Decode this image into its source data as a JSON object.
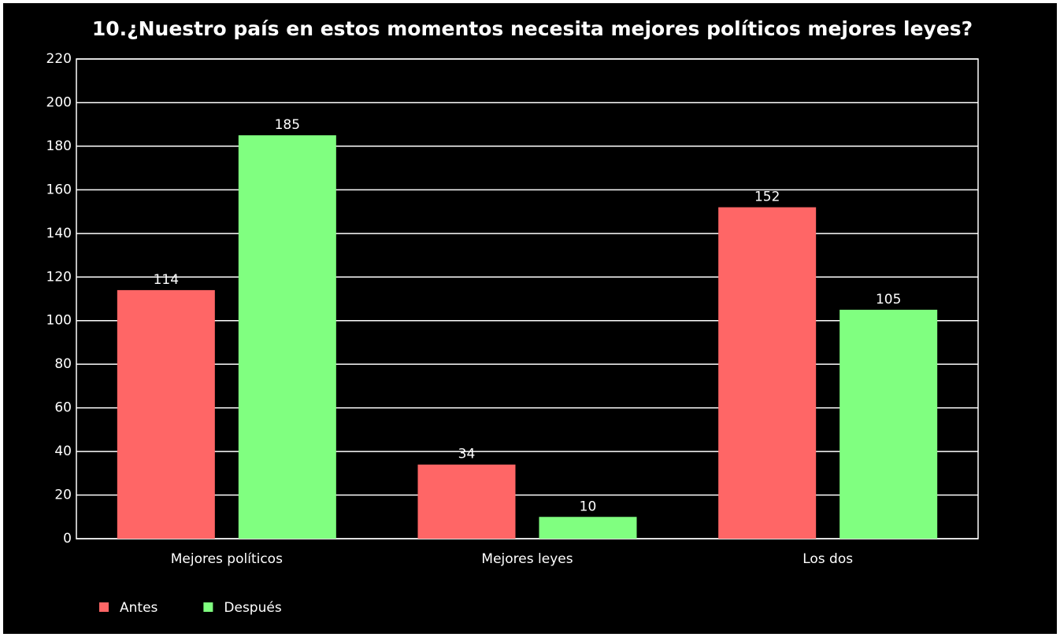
{
  "chart_data": {
    "type": "bar",
    "title": "10.¿Nuestro país en estos momentos necesita mejores políticos  mejores leyes?",
    "categories": [
      "Mejores políticos",
      "Mejores leyes",
      "Los dos"
    ],
    "series": [
      {
        "name": "Antes",
        "color": "#ff6666",
        "values": [
          114,
          34,
          152
        ]
      },
      {
        "name": "Después",
        "color": "#80ff80",
        "values": [
          185,
          10,
          105
        ]
      }
    ],
    "ylim": [
      0,
      220
    ],
    "yticks": [
      0,
      20,
      40,
      60,
      80,
      100,
      120,
      140,
      160,
      180,
      200,
      220
    ],
    "grid": true,
    "legend": "bottom-left"
  }
}
